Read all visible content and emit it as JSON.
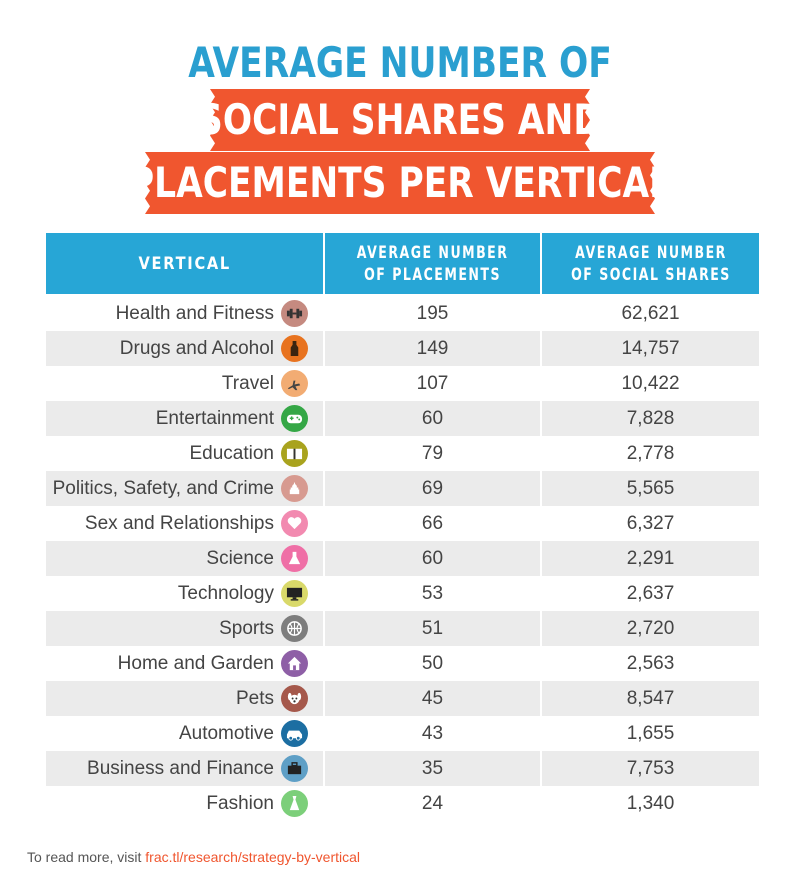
{
  "title": {
    "line1": "AVERAGE NUMBER OF",
    "line2": "SOCIAL SHARES AND",
    "line3": "PLACEMENTS PER VERTICAL"
  },
  "colors": {
    "title_blue": "#2a9fd0",
    "banner_orange": "#f0562f",
    "header_blue": "#27a6d6",
    "row_alt": "#ebebeb"
  },
  "table": {
    "headers": {
      "vertical": "VERTICAL",
      "placements_l1": "AVERAGE NUMBER",
      "placements_l2": "OF PLACEMENTS",
      "shares_l1": "AVERAGE NUMBER",
      "shares_l2": "OF SOCIAL SHARES"
    },
    "rows": [
      {
        "vertical": "Health and Fitness",
        "placements": "195",
        "shares": "62,621",
        "icon": "dumbbell-icon",
        "icon_color": "#c58a80"
      },
      {
        "vertical": "Drugs and Alcohol",
        "placements": "149",
        "shares": "14,757",
        "icon": "bottle-icon",
        "icon_color": "#e8731f"
      },
      {
        "vertical": "Travel",
        "placements": "107",
        "shares": "10,422",
        "icon": "airplane-icon",
        "icon_color": "#f2ac73"
      },
      {
        "vertical": "Entertainment",
        "placements": "60",
        "shares": "7,828",
        "icon": "gamepad-icon",
        "icon_color": "#35a746"
      },
      {
        "vertical": "Education",
        "placements": "79",
        "shares": "2,778",
        "icon": "book-icon",
        "icon_color": "#a9a31e"
      },
      {
        "vertical": "Politics, Safety, and Crime",
        "placements": "69",
        "shares": "5,565",
        "icon": "capitol-icon",
        "icon_color": "#d79a90"
      },
      {
        "vertical": "Sex and Relationships",
        "placements": "66",
        "shares": "6,327",
        "icon": "heart-icon",
        "icon_color": "#f28ab0"
      },
      {
        "vertical": "Science",
        "placements": "60",
        "shares": "2,291",
        "icon": "flask-icon",
        "icon_color": "#ef6fa6"
      },
      {
        "vertical": "Technology",
        "placements": "53",
        "shares": "2,637",
        "icon": "monitor-icon",
        "icon_color": "#d9d96a"
      },
      {
        "vertical": "Sports",
        "placements": "51",
        "shares": "2,720",
        "icon": "ball-icon",
        "icon_color": "#7d7d7d"
      },
      {
        "vertical": "Home and Garden",
        "placements": "50",
        "shares": "2,563",
        "icon": "house-icon",
        "icon_color": "#8e5fa6"
      },
      {
        "vertical": "Pets",
        "placements": "45",
        "shares": "8,547",
        "icon": "dog-icon",
        "icon_color": "#a5584b"
      },
      {
        "vertical": "Automotive",
        "placements": "43",
        "shares": "1,655",
        "icon": "car-icon",
        "icon_color": "#1c6ea2"
      },
      {
        "vertical": "Business and Finance",
        "placements": "35",
        "shares": "7,753",
        "icon": "briefcase-icon",
        "icon_color": "#5e9fc6"
      },
      {
        "vertical": "Fashion",
        "placements": "24",
        "shares": "1,340",
        "icon": "dress-icon",
        "icon_color": "#7ccf7a"
      }
    ]
  },
  "footer": {
    "prefix": "To read more, visit ",
    "link": "frac.tl/research/strategy-by-vertical"
  }
}
